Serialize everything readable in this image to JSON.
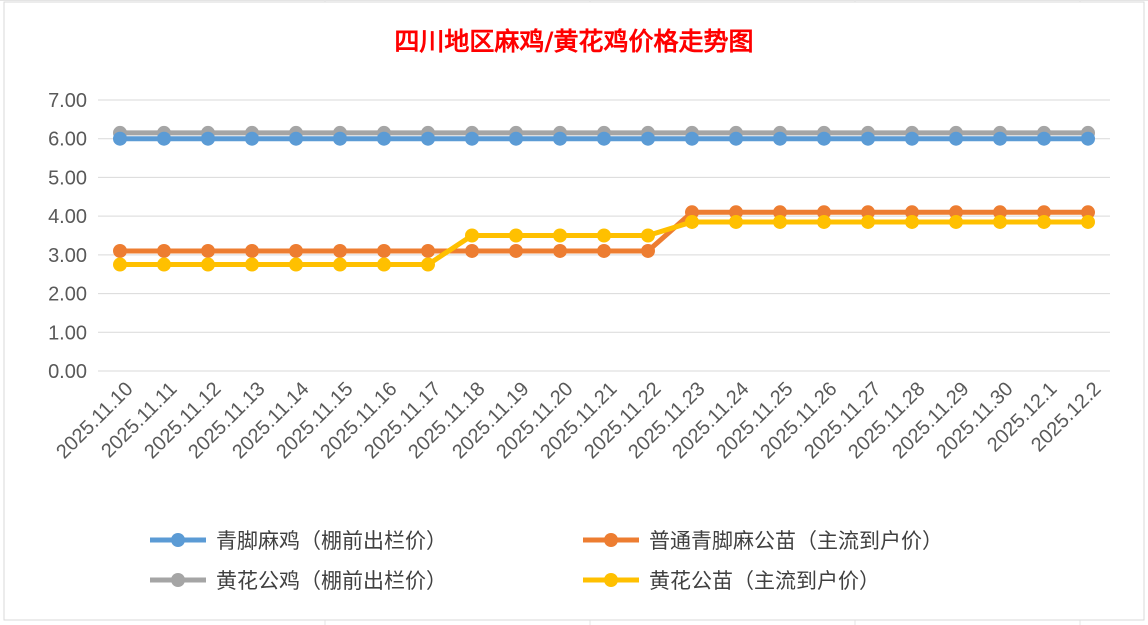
{
  "chart_data": {
    "type": "line",
    "title": "四川地区麻鸡/黄花鸡价格走势图",
    "categories": [
      "2025.11.10",
      "2025.11.11",
      "2025.11.12",
      "2025.11.13",
      "2025.11.14",
      "2025.11.15",
      "2025.11.16",
      "2025.11.17",
      "2025.11.18",
      "2025.11.19",
      "2025.11.20",
      "2025.11.21",
      "2025.11.22",
      "2025.11.23",
      "2025.11.24",
      "2025.11.25",
      "2025.11.26",
      "2025.11.27",
      "2025.11.28",
      "2025.11.29",
      "2025.11.30",
      "2025.12.1",
      "2025.12.2"
    ],
    "ylim": [
      0,
      7
    ],
    "yticks": [
      "0.00",
      "1.00",
      "2.00",
      "3.00",
      "4.00",
      "5.00",
      "6.00",
      "7.00"
    ],
    "grid": true,
    "legend_position": "bottom",
    "series": [
      {
        "name": "青脚麻鸡（棚前出栏价）",
        "color": "#5b9bd5",
        "values": [
          6.0,
          6.0,
          6.0,
          6.0,
          6.0,
          6.0,
          6.0,
          6.0,
          6.0,
          6.0,
          6.0,
          6.0,
          6.0,
          6.0,
          6.0,
          6.0,
          6.0,
          6.0,
          6.0,
          6.0,
          6.0,
          6.0,
          6.0
        ]
      },
      {
        "name": "普通青脚麻公苗（主流到户价）",
        "color": "#ed7d31",
        "values": [
          3.1,
          3.1,
          3.1,
          3.1,
          3.1,
          3.1,
          3.1,
          3.1,
          3.1,
          3.1,
          3.1,
          3.1,
          3.1,
          4.1,
          4.1,
          4.1,
          4.1,
          4.1,
          4.1,
          4.1,
          4.1,
          4.1,
          4.1
        ]
      },
      {
        "name": "黄花公鸡（棚前出栏价）",
        "color": "#a5a5a5",
        "values": [
          6.15,
          6.15,
          6.15,
          6.15,
          6.15,
          6.15,
          6.15,
          6.15,
          6.15,
          6.15,
          6.15,
          6.15,
          6.15,
          6.15,
          6.15,
          6.15,
          6.15,
          6.15,
          6.15,
          6.15,
          6.15,
          6.15,
          6.15
        ]
      },
      {
        "name": "黄花公苗（主流到户价）",
        "color": "#ffc000",
        "values": [
          2.75,
          2.75,
          2.75,
          2.75,
          2.75,
          2.75,
          2.75,
          2.75,
          3.5,
          3.5,
          3.5,
          3.5,
          3.5,
          3.85,
          3.85,
          3.85,
          3.85,
          3.85,
          3.85,
          3.85,
          3.85,
          3.85,
          3.85
        ]
      }
    ]
  }
}
